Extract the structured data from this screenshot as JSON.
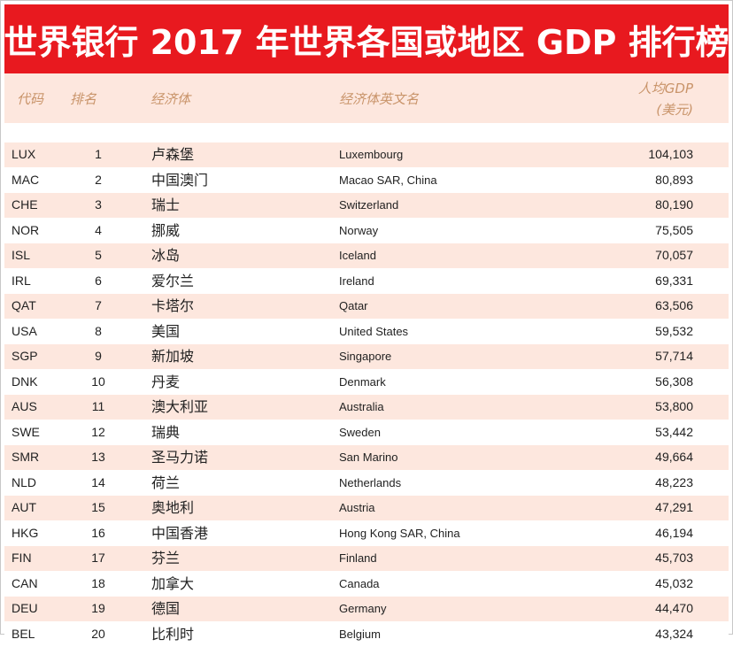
{
  "title": "世界银行 2017 年世界各国或地区 GDP 排行榜",
  "header": {
    "code": "代码",
    "rank": "排名",
    "economy": "经济体",
    "economy_en": "经济体英文名",
    "gdp": "人均GDP",
    "unit": "(美元)"
  },
  "rows": [
    {
      "code": "LUX",
      "rank": "1",
      "name_cn": "卢森堡",
      "name_en": "Luxembourg",
      "gdp": "104,103"
    },
    {
      "code": "MAC",
      "rank": "2",
      "name_cn": "中国澳门",
      "name_en": "Macao SAR, China",
      "gdp": "80,893"
    },
    {
      "code": "CHE",
      "rank": "3",
      "name_cn": "瑞士",
      "name_en": "Switzerland",
      "gdp": "80,190"
    },
    {
      "code": "NOR",
      "rank": "4",
      "name_cn": "挪威",
      "name_en": "Norway",
      "gdp": "75,505"
    },
    {
      "code": "ISL",
      "rank": "5",
      "name_cn": "冰岛",
      "name_en": "Iceland",
      "gdp": "70,057"
    },
    {
      "code": "IRL",
      "rank": "6",
      "name_cn": "爱尔兰",
      "name_en": "Ireland",
      "gdp": "69,331"
    },
    {
      "code": "QAT",
      "rank": "7",
      "name_cn": "卡塔尔",
      "name_en": "Qatar",
      "gdp": "63,506"
    },
    {
      "code": "USA",
      "rank": "8",
      "name_cn": "美国",
      "name_en": "United States",
      "gdp": "59,532"
    },
    {
      "code": "SGP",
      "rank": "9",
      "name_cn": "新加坡",
      "name_en": "Singapore",
      "gdp": "57,714"
    },
    {
      "code": "DNK",
      "rank": "10",
      "name_cn": "丹麦",
      "name_en": "Denmark",
      "gdp": "56,308"
    },
    {
      "code": "AUS",
      "rank": "11",
      "name_cn": "澳大利亚",
      "name_en": "Australia",
      "gdp": "53,800"
    },
    {
      "code": "SWE",
      "rank": "12",
      "name_cn": "瑞典",
      "name_en": "Sweden",
      "gdp": "53,442"
    },
    {
      "code": "SMR",
      "rank": "13",
      "name_cn": "圣马力诺",
      "name_en": "San Marino",
      "gdp": "49,664"
    },
    {
      "code": "NLD",
      "rank": "14",
      "name_cn": "荷兰",
      "name_en": "Netherlands",
      "gdp": "48,223"
    },
    {
      "code": "AUT",
      "rank": "15",
      "name_cn": "奥地利",
      "name_en": "Austria",
      "gdp": "47,291"
    },
    {
      "code": "HKG",
      "rank": "16",
      "name_cn": "中国香港",
      "name_en": "Hong Kong SAR, China",
      "gdp": "46,194"
    },
    {
      "code": "FIN",
      "rank": "17",
      "name_cn": "芬兰",
      "name_en": "Finland",
      "gdp": "45,703"
    },
    {
      "code": "CAN",
      "rank": "18",
      "name_cn": "加拿大",
      "name_en": "Canada",
      "gdp": "45,032"
    },
    {
      "code": "DEU",
      "rank": "19",
      "name_cn": "德国",
      "name_en": "Germany",
      "gdp": "44,470"
    },
    {
      "code": "BEL",
      "rank": "20",
      "name_cn": "比利时",
      "name_en": "Belgium",
      "gdp": "43,324"
    }
  ]
}
